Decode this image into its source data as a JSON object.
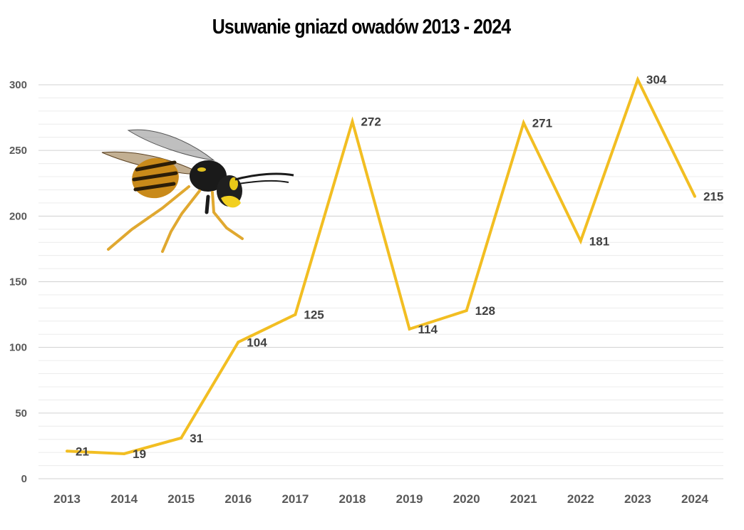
{
  "chart_data": {
    "type": "line",
    "title": "Usuwanie gniazd owadów 2013 - 2024",
    "xlabel": "",
    "ylabel": "",
    "categories": [
      "2013",
      "2014",
      "2015",
      "2016",
      "2017",
      "2018",
      "2019",
      "2020",
      "2021",
      "2022",
      "2023",
      "2024"
    ],
    "series": [
      {
        "values": [
          21,
          19,
          31,
          104,
          125,
          272,
          114,
          128,
          271,
          181,
          304,
          215
        ]
      }
    ],
    "ylim": [
      0,
      300
    ],
    "yticks": [
      0,
      50,
      100,
      150,
      200,
      250,
      300
    ],
    "minor_grid_step": 10,
    "grid": true,
    "legend": "none",
    "data_labels": true,
    "line_color": "#F2BE22",
    "illustration": "wasp-icon"
  }
}
